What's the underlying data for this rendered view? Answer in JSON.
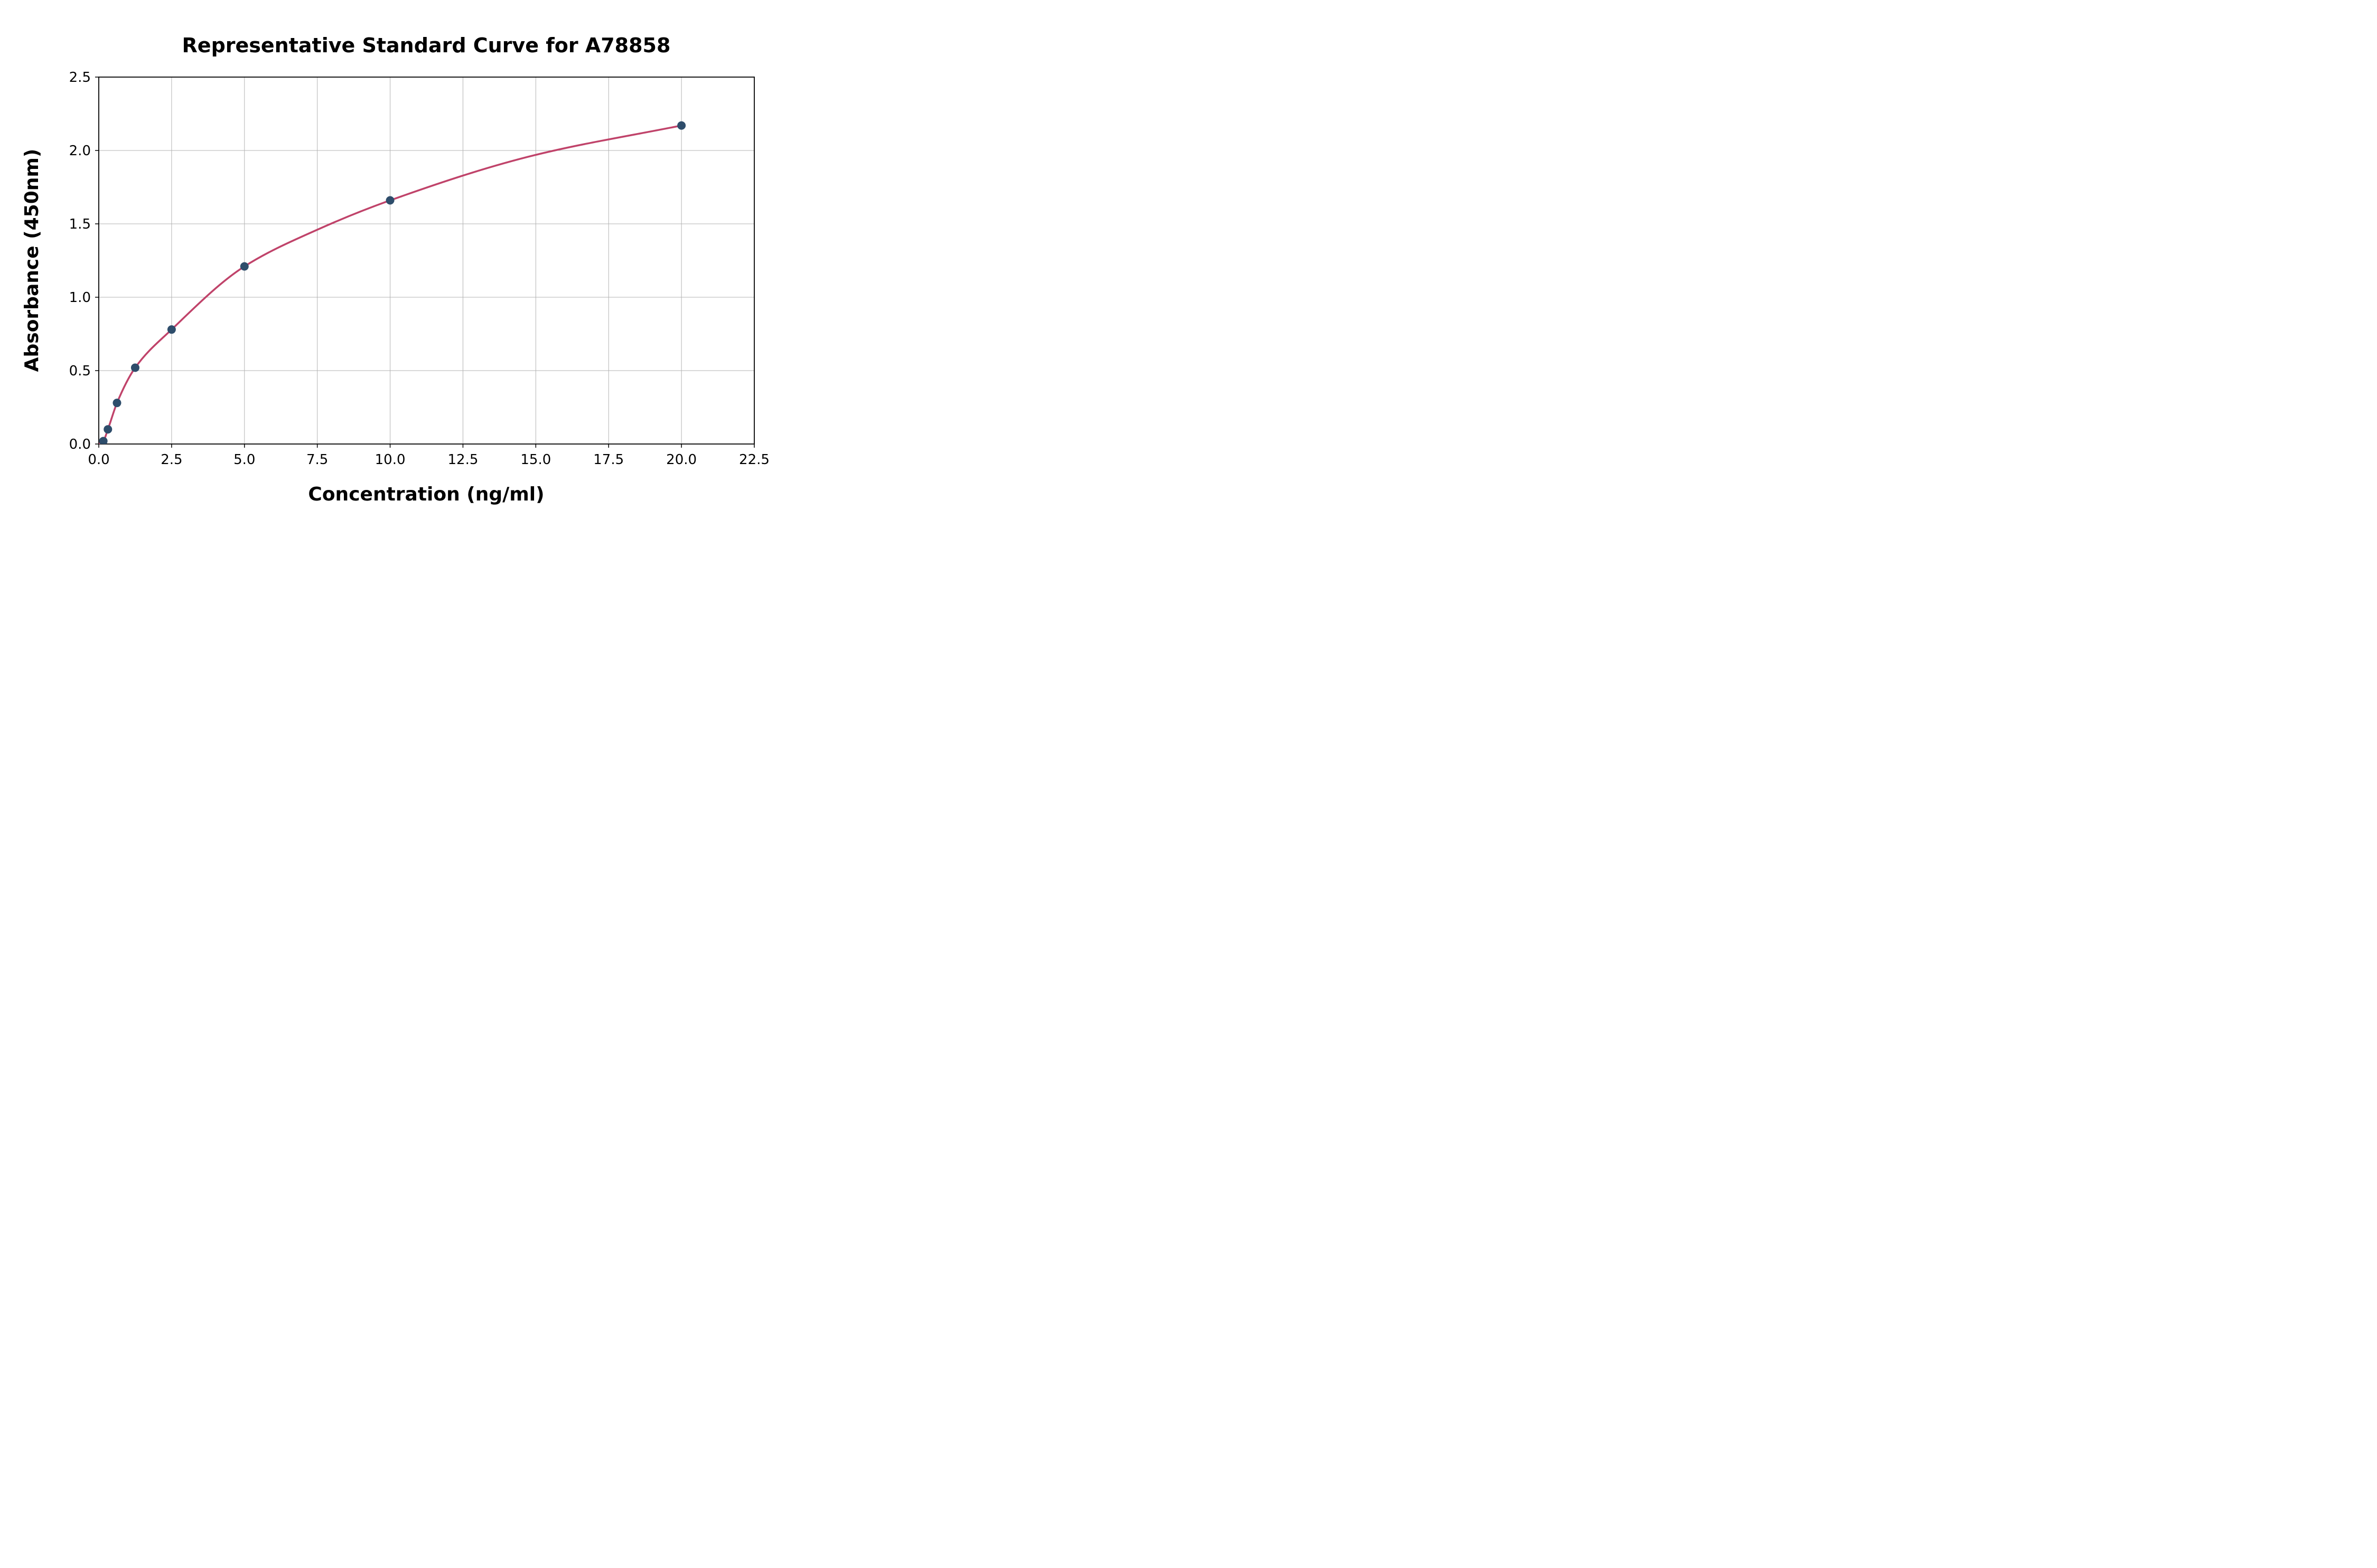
{
  "chart_data": {
    "type": "scatter",
    "title": "Representative Standard Curve for A78858",
    "xlabel": "Concentration (ng/ml)",
    "ylabel": "Absorbance (450nm)",
    "xlim": [
      0,
      22.5
    ],
    "ylim": [
      0,
      2.5
    ],
    "xticks": [
      0,
      2.5,
      5,
      7.5,
      10,
      12.5,
      15,
      17.5,
      20,
      22.5
    ],
    "xtick_labels": [
      "0.0",
      "2.5",
      "5.0",
      "7.5",
      "10.0",
      "12.5",
      "15.0",
      "17.5",
      "20.0",
      "22.5"
    ],
    "yticks": [
      0,
      0.5,
      1,
      1.5,
      2,
      2.5
    ],
    "ytick_labels": [
      "0.0",
      "0.5",
      "1.0",
      "1.5",
      "2.0",
      "2.5"
    ],
    "grid": true,
    "legend_position": "none",
    "colors": {
      "fit_curve": "#c0436a",
      "data_points": "#2e4d6b",
      "gridline": "#b3b3b3",
      "axis": "#000000",
      "background": "#ffffff"
    },
    "series": [
      {
        "name": "standards",
        "type": "scatter",
        "color": "#2e4d6b",
        "x": [
          0.156,
          0.313,
          0.625,
          1.25,
          2.5,
          5.0,
          10.0,
          20.0
        ],
        "y": [
          0.02,
          0.1,
          0.28,
          0.52,
          0.78,
          1.21,
          1.66,
          2.17
        ]
      },
      {
        "name": "fit-curve",
        "type": "line",
        "color": "#c0436a",
        "x": [
          0.0,
          0.156,
          0.313,
          0.625,
          1.25,
          2.5,
          5.0,
          7.5,
          10.0,
          15.0,
          20.0
        ],
        "y": [
          0.0,
          0.02,
          0.1,
          0.28,
          0.52,
          0.78,
          1.21,
          1.46,
          1.66,
          1.97,
          2.17
        ]
      }
    ]
  }
}
